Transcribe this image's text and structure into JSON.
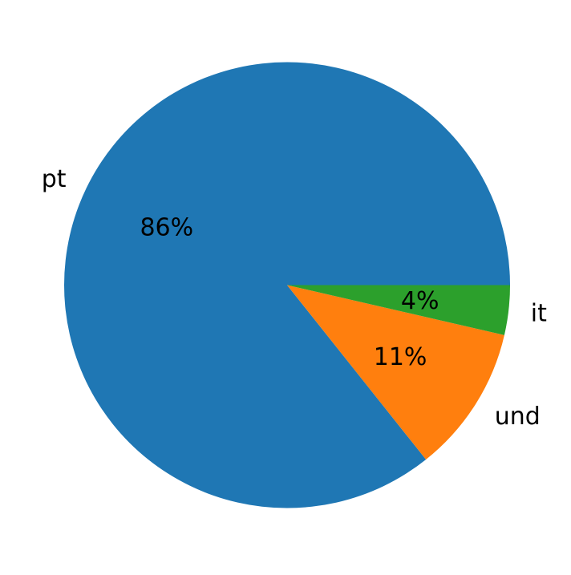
{
  "chart_data": {
    "type": "pie",
    "title": "",
    "labels": [
      "pt",
      "und",
      "it"
    ],
    "values": [
      85.7,
      10.7,
      3.6
    ],
    "pct_labels": [
      "86%",
      "11%",
      "4%"
    ],
    "colors": [
      "#1f77b4",
      "#ff7f0e",
      "#2ca02c"
    ],
    "start_angle_deg": 0,
    "direction": "counterclockwise",
    "label_distance": 1.1,
    "pct_distance": 0.6,
    "text_color": "#000000",
    "background_color": "#ffffff",
    "legend": "none",
    "grid": false
  }
}
